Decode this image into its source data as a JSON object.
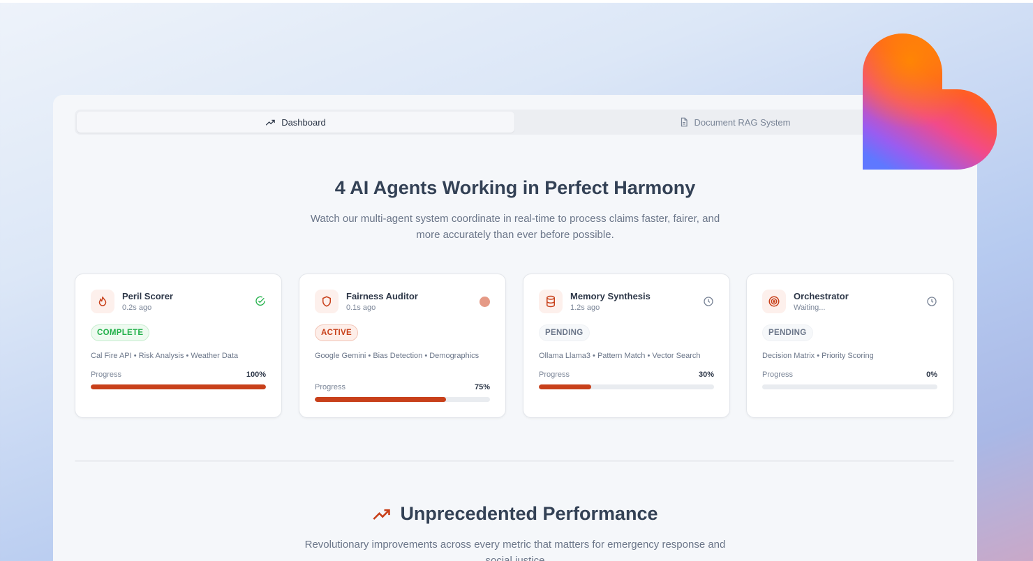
{
  "tabs": [
    {
      "label": "Dashboard",
      "icon": "trending-up-icon",
      "active": true
    },
    {
      "label": "Document RAG System",
      "icon": "document-icon",
      "active": false
    }
  ],
  "hero": {
    "title": "4 AI Agents Working in Perfect Harmony",
    "subtitle": "Watch our multi-agent system coordinate in real-time to process claims faster, fairer, and more accurately than ever before possible."
  },
  "progress_label": "Progress",
  "agents": [
    {
      "name": "Peril Scorer",
      "time": "0.2s ago",
      "status": "COMPLETE",
      "status_icon": "check-circle-icon",
      "icon": "flame-icon",
      "tags": "Cal Fire API • Risk Analysis • Weather Data",
      "progress": 100,
      "progress_text": "100%"
    },
    {
      "name": "Fairness Auditor",
      "time": "0.1s ago",
      "status": "ACTIVE",
      "status_icon": "active-dot-icon",
      "icon": "shield-icon",
      "tags": "Google Gemini • Bias Detection • Demographics",
      "progress": 75,
      "progress_text": "75%"
    },
    {
      "name": "Memory Synthesis",
      "time": "1.2s ago",
      "status": "PENDING",
      "status_icon": "clock-icon",
      "icon": "database-icon",
      "tags": "Ollama Llama3 • Pattern Match • Vector Search",
      "progress": 30,
      "progress_text": "30%"
    },
    {
      "name": "Orchestrator",
      "time": "Waiting...",
      "status": "PENDING",
      "status_icon": "clock-icon",
      "icon": "target-icon",
      "tags": "Decision Matrix • Priority Scoring",
      "progress": 0,
      "progress_text": "0%"
    }
  ],
  "performance": {
    "title": "Unprecedented Performance",
    "subtitle": "Revolutionary improvements across every metric that matters for emergency response and social justice"
  },
  "colors": {
    "accent": "#c8401a",
    "complete": "#22b04a",
    "text": "#334155"
  }
}
